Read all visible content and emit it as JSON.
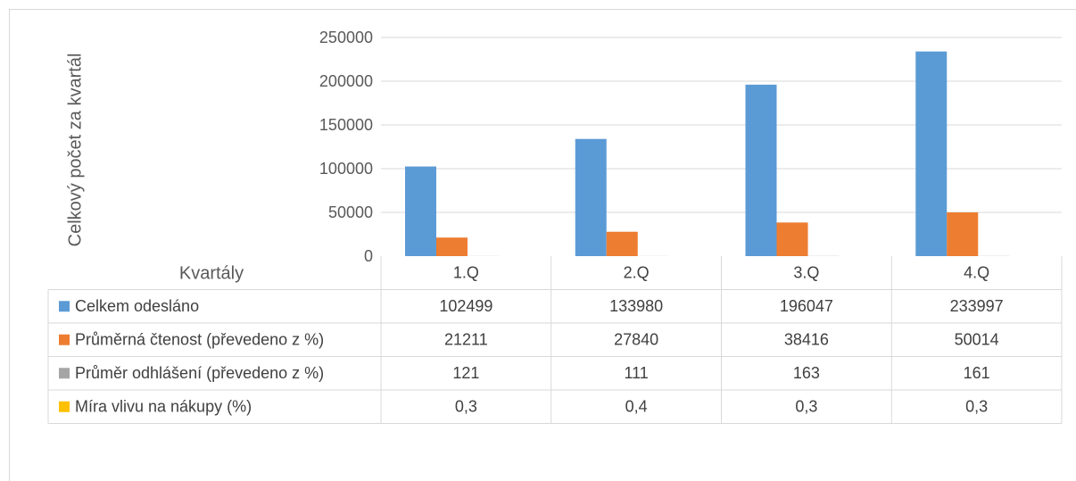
{
  "chart_data": {
    "type": "bar",
    "ylabel": "Celkový počet za kvartál",
    "xlabel": "Kvartály",
    "categories": [
      "1.Q",
      "2.Q",
      "3.Q",
      "4.Q"
    ],
    "ylim": [
      0,
      250000
    ],
    "yticks": [
      "0",
      "50000",
      "100000",
      "150000",
      "200000",
      "250000"
    ],
    "grid": true,
    "legend": "data-table",
    "series": [
      {
        "name": "Celkem odesláno",
        "color": "#5b9bd5",
        "values": [
          102499,
          133980,
          196047,
          233997
        ],
        "labels": [
          "102499",
          "133980",
          "196047",
          "233997"
        ]
      },
      {
        "name": "Průměrná čtenost (převedeno z %)",
        "color": "#ed7d31",
        "values": [
          21211,
          27840,
          38416,
          50014
        ],
        "labels": [
          "21211",
          "27840",
          "38416",
          "50014"
        ]
      },
      {
        "name": "Průměr odhlášení (převedeno z %)",
        "color": "#a5a5a5",
        "values": [
          121,
          111,
          163,
          161
        ],
        "labels": [
          "121",
          "111",
          "163",
          "161"
        ]
      },
      {
        "name": "Míra vlivu na nákupy (%)",
        "color": "#ffc000",
        "values": [
          0.3,
          0.4,
          0.3,
          0.3
        ],
        "labels": [
          "0,3",
          "0,4",
          "0,3",
          "0,3"
        ]
      }
    ]
  }
}
